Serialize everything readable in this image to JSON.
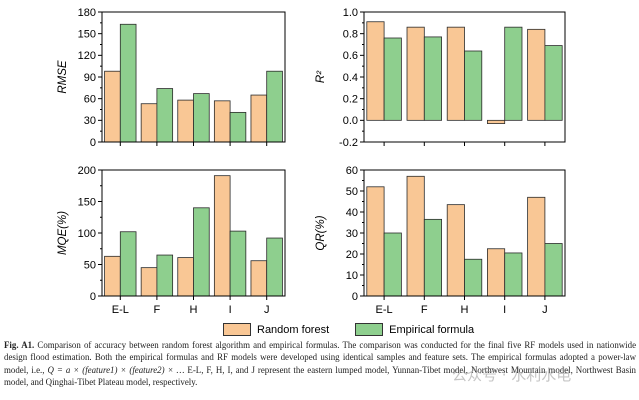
{
  "colors": {
    "random_forest": "#f9c795",
    "empirical": "#8ecf8e",
    "stroke": "#2b2b2b"
  },
  "legend": {
    "random_forest": "Random forest",
    "empirical": "Empirical formula"
  },
  "caption": {
    "label": "Fig. A1.",
    "text_1": "Comparison of accuracy between random forest algorithm and empirical formulas. The comparison was conducted for the final five RF models used in nationwide design flood estimation. Both the empirical formulas and RF models were developed using identical samples and feature sets. The empirical formulas adopted a power-law model, i.e., ",
    "formula": "Q = a × (feature1) × (feature2) × …",
    "text_2": " E-L, F, H, I, and J represent the eastern lumped model, Yunnan-Tibet model, Northwest Mountain model, Northwest Basin model, and Qinghai-Tibet Plateau model, respectively."
  },
  "watermark": "公众号 · 水利水电",
  "chart_data": [
    {
      "type": "bar",
      "id": "rmse",
      "categories": [
        "E-L",
        "F",
        "H",
        "I",
        "J"
      ],
      "ylabel": "RMSE",
      "ylim": [
        0,
        180
      ],
      "yticks": [
        "0",
        "30",
        "60",
        "90",
        "120",
        "150",
        "180"
      ],
      "series": [
        {
          "name": "Random forest",
          "values": [
            98,
            53,
            58,
            57,
            65
          ]
        },
        {
          "name": "Empirical formula",
          "values": [
            163,
            74,
            67,
            41,
            98
          ]
        }
      ]
    },
    {
      "type": "bar",
      "id": "r2",
      "categories": [
        "E-L",
        "F",
        "H",
        "I",
        "J"
      ],
      "ylabel": "R²",
      "ylim": [
        -0.2,
        1.0
      ],
      "yticks": [
        "-0.2",
        "0.0",
        "0.2",
        "0.4",
        "0.6",
        "0.8",
        "1.0"
      ],
      "series": [
        {
          "name": "Random forest",
          "values": [
            0.91,
            0.86,
            0.86,
            -0.03,
            0.84
          ]
        },
        {
          "name": "Empirical formula",
          "values": [
            0.76,
            0.77,
            0.64,
            0.86,
            0.69
          ]
        }
      ]
    },
    {
      "type": "bar",
      "id": "mqe",
      "categories": [
        "E-L",
        "F",
        "H",
        "I",
        "J"
      ],
      "ylabel": "MQE(%)",
      "ylim": [
        0,
        200
      ],
      "yticks": [
        "0",
        "50",
        "100",
        "150",
        "200"
      ],
      "series": [
        {
          "name": "Random forest",
          "values": [
            63,
            45,
            61,
            191,
            56
          ]
        },
        {
          "name": "Empirical formula",
          "values": [
            102,
            65,
            140,
            103,
            92
          ]
        }
      ]
    },
    {
      "type": "bar",
      "id": "qr",
      "categories": [
        "E-L",
        "F",
        "H",
        "I",
        "J"
      ],
      "ylabel": "QR(%)",
      "ylim": [
        0,
        60
      ],
      "yticks": [
        "0",
        "10",
        "20",
        "30",
        "40",
        "50",
        "60"
      ],
      "series": [
        {
          "name": "Random forest",
          "values": [
            52,
            57,
            43.5,
            22.5,
            47
          ]
        },
        {
          "name": "Empirical formula",
          "values": [
            30,
            36.5,
            17.5,
            20.5,
            25
          ]
        }
      ]
    }
  ]
}
